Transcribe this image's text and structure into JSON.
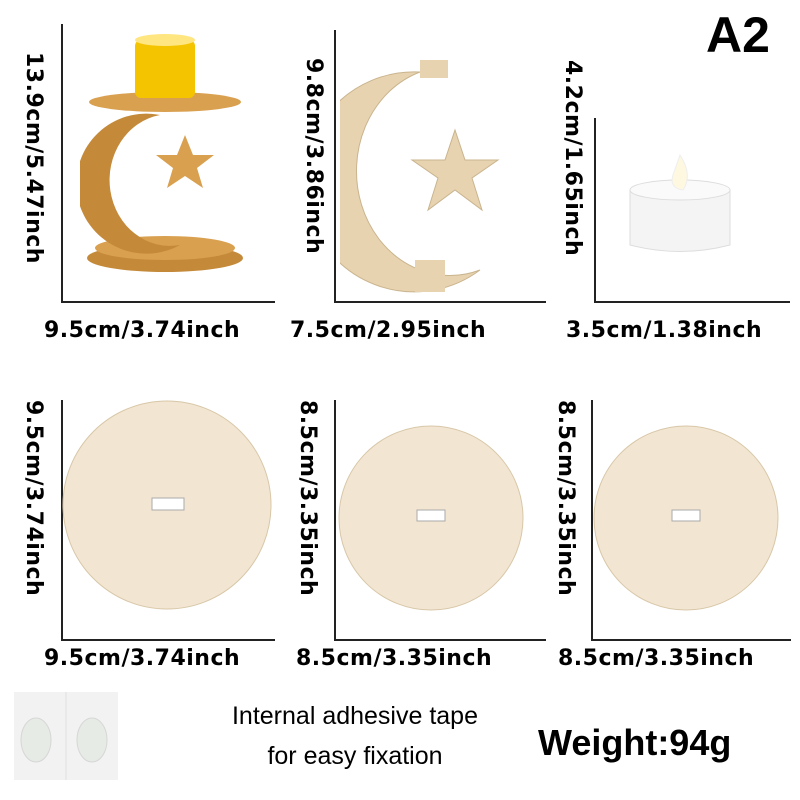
{
  "variant_label": "A2",
  "row1": [
    {
      "name": "candle-holder-assembled",
      "height": "13.9cm/5.47inch",
      "width": "9.5cm/3.74inch"
    },
    {
      "name": "moon-star-piece",
      "height": "9.8cm/3.86inch",
      "width": "7.5cm/2.95inch"
    },
    {
      "name": "led-tealight",
      "height": "4.2cm/1.65inch",
      "width": "3.5cm/1.38inch"
    }
  ],
  "row2": [
    {
      "name": "large-base-disc",
      "height": "9.5cm/3.74inch",
      "width": "9.5cm/3.74inch"
    },
    {
      "name": "medium-disc-1",
      "height": "8.5cm/3.35inch",
      "width": "8.5cm/3.35inch"
    },
    {
      "name": "medium-disc-2",
      "height": "8.5cm/3.35inch",
      "width": "8.5cm/3.35inch"
    }
  ],
  "tape": {
    "line1": "Internal adhesive tape",
    "line2": "for easy fixation"
  },
  "weight": "Weight:94g",
  "colors": {
    "wood": "#e8d3b0",
    "wood_dark": "#c48a3a",
    "candle_glow": "#f5c400"
  }
}
